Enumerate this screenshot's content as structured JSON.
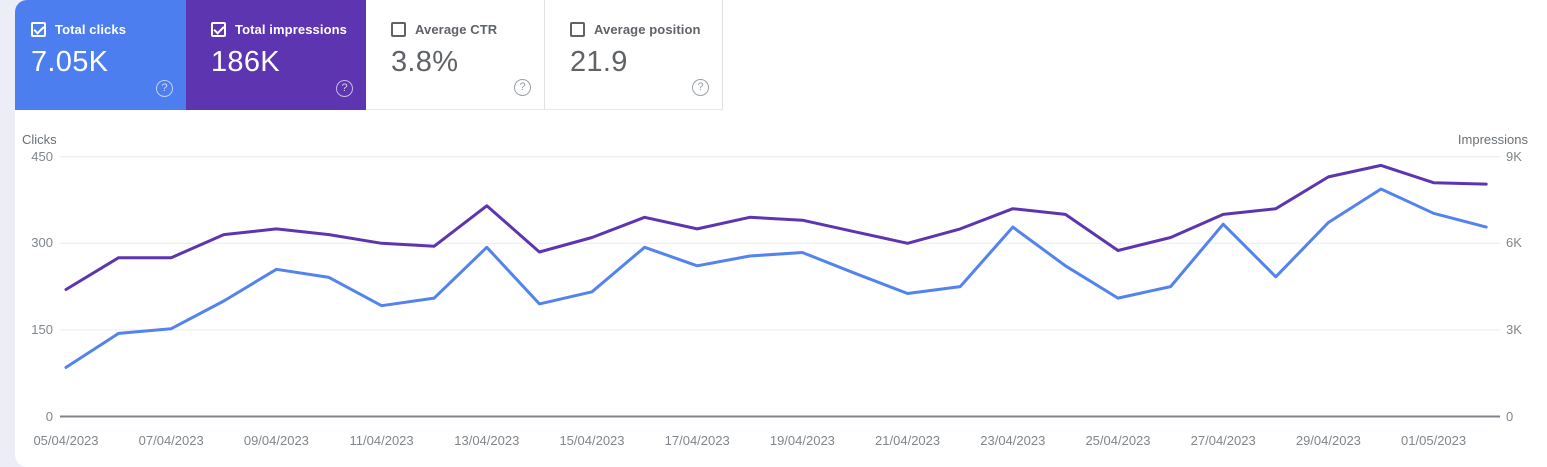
{
  "cards": [
    {
      "label": "Total clicks",
      "value": "7.05K",
      "checked": true,
      "bg": "#4c7ef0"
    },
    {
      "label": "Total impressions",
      "value": "186K",
      "checked": true,
      "bg": "#5e35b1"
    },
    {
      "label": "Average CTR",
      "value": "3.8%",
      "checked": false,
      "bg": "#ffffff"
    },
    {
      "label": "Average position",
      "value": "21.9",
      "checked": false,
      "bg": "#ffffff"
    }
  ],
  "icons": {
    "help": "?"
  },
  "colors": {
    "page_background": "#ecedf7",
    "clicks_accent": "#4c7ef0",
    "impressions_accent": "#5e35b1",
    "clicks_line": "#5383ee",
    "impressions_line": "#5e35b1",
    "grid_line": "#e9ebee",
    "axis_line": "#80868b",
    "axis_text": "#80868b",
    "label_text": "#5f6368"
  },
  "chart_data": {
    "type": "line",
    "grid": true,
    "x": [
      "05/04/2023",
      "06/04/2023",
      "07/04/2023",
      "08/04/2023",
      "09/04/2023",
      "10/04/2023",
      "11/04/2023",
      "12/04/2023",
      "13/04/2023",
      "14/04/2023",
      "15/04/2023",
      "16/04/2023",
      "17/04/2023",
      "18/04/2023",
      "19/04/2023",
      "20/04/2023",
      "21/04/2023",
      "22/04/2023",
      "23/04/2023",
      "24/04/2023",
      "25/04/2023",
      "26/04/2023",
      "27/04/2023",
      "28/04/2023",
      "29/04/2023",
      "30/04/2023",
      "01/05/2023",
      "02/05/2023"
    ],
    "x_tick_labels": [
      "05/04/2023",
      "07/04/2023",
      "09/04/2023",
      "11/04/2023",
      "13/04/2023",
      "15/04/2023",
      "17/04/2023",
      "19/04/2023",
      "21/04/2023",
      "23/04/2023",
      "25/04/2023",
      "27/04/2023",
      "29/04/2023",
      "01/05/2023"
    ],
    "left_axis": {
      "label": "Clicks",
      "ticks": [
        "0",
        "150",
        "300",
        "450"
      ],
      "range": [
        0,
        450
      ]
    },
    "right_axis": {
      "label": "Impressions",
      "ticks": [
        "0",
        "3K",
        "6K",
        "9K"
      ],
      "range": [
        0,
        9000
      ]
    },
    "series": [
      {
        "name": "Clicks",
        "axis": "left",
        "color": "#5383ee",
        "values": [
          85,
          144,
          152,
          200,
          255,
          241,
          192,
          205,
          293,
          195,
          216,
          293,
          261,
          278,
          284,
          248,
          213,
          225,
          328,
          261,
          205,
          225,
          333,
          242,
          336,
          394,
          352,
          328
        ]
      },
      {
        "name": "Impressions",
        "axis": "right",
        "color": "#5e35b1",
        "values": [
          4400,
          5500,
          5500,
          6300,
          6500,
          6300,
          6000,
          5900,
          7300,
          5700,
          6200,
          6900,
          6500,
          6900,
          6800,
          6400,
          6000,
          6500,
          7200,
          7000,
          5750,
          6200,
          7000,
          7200,
          8300,
          8700,
          8100,
          8050
        ]
      }
    ]
  }
}
